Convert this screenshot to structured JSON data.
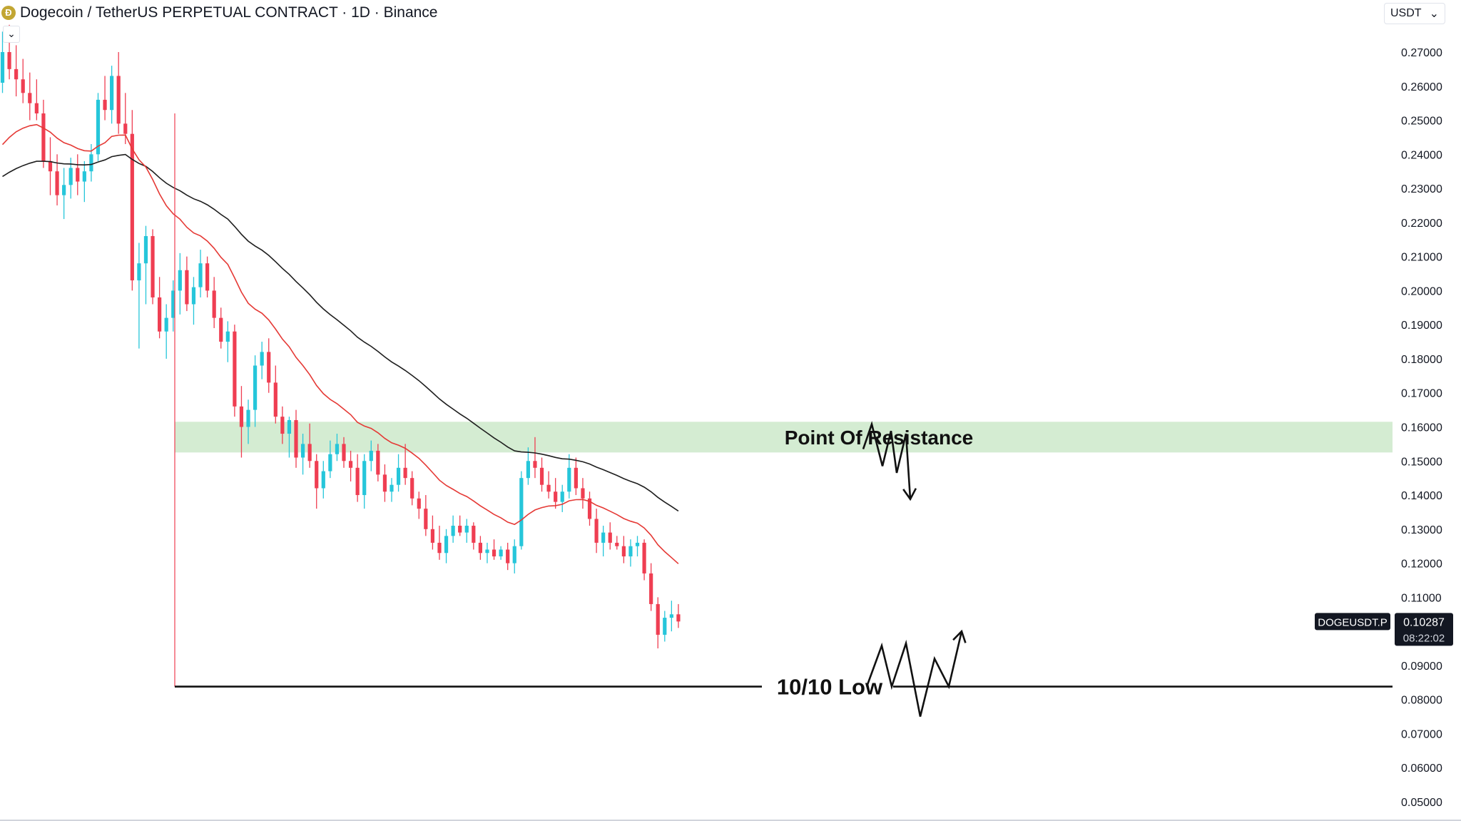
{
  "header": {
    "title": "Dogecoin / TetherUS PERPETUAL CONTRACT · 1D · Binance",
    "icon": "dogecoin-icon",
    "collapse_icon": "chevron-down-icon",
    "currency": "USDT",
    "currency_icon": "chevron-down-icon"
  },
  "chart_data": {
    "type": "candlestick",
    "ylim": [
      0.045,
      0.283
    ],
    "y_ticks": [
      "0.27000",
      "0.26000",
      "0.25000",
      "0.24000",
      "0.23000",
      "0.22000",
      "0.21000",
      "0.20000",
      "0.19000",
      "0.18000",
      "0.17000",
      "0.16000",
      "0.15000",
      "0.14000",
      "0.13000",
      "0.12000",
      "0.11000",
      "0.09000",
      "0.08000",
      "0.07000",
      "0.06000",
      "0.05000"
    ],
    "price_tag": {
      "symbol": "DOGEUSDT.P",
      "price": "0.10287",
      "countdown": "08:22:02",
      "value": 0.10287
    },
    "colors": {
      "up": "#26c6da",
      "down": "#ef3e52",
      "ema_fast": "#e53935",
      "ema_slow": "#1e1e1e",
      "zone": "#d4ecd2"
    },
    "candles": [
      [
        0.261,
        0.276,
        0.258,
        0.27
      ],
      [
        0.27,
        0.278,
        0.262,
        0.265
      ],
      [
        0.265,
        0.272,
        0.257,
        0.262
      ],
      [
        0.262,
        0.268,
        0.255,
        0.258
      ],
      [
        0.258,
        0.264,
        0.25,
        0.255
      ],
      [
        0.255,
        0.262,
        0.25,
        0.252
      ],
      [
        0.252,
        0.256,
        0.236,
        0.238
      ],
      [
        0.238,
        0.245,
        0.228,
        0.235
      ],
      [
        0.235,
        0.24,
        0.225,
        0.228
      ],
      [
        0.228,
        0.236,
        0.221,
        0.231
      ],
      [
        0.231,
        0.239,
        0.227,
        0.236
      ],
      [
        0.236,
        0.24,
        0.228,
        0.232
      ],
      [
        0.232,
        0.238,
        0.226,
        0.235
      ],
      [
        0.235,
        0.243,
        0.232,
        0.24
      ],
      [
        0.24,
        0.258,
        0.238,
        0.256
      ],
      [
        0.256,
        0.263,
        0.25,
        0.253
      ],
      [
        0.253,
        0.266,
        0.249,
        0.263
      ],
      [
        0.263,
        0.27,
        0.246,
        0.249
      ],
      [
        0.249,
        0.258,
        0.243,
        0.246
      ],
      [
        0.246,
        0.253,
        0.2,
        0.203
      ],
      [
        0.203,
        0.214,
        0.183,
        0.208
      ],
      [
        0.208,
        0.219,
        0.196,
        0.216
      ],
      [
        0.216,
        0.218,
        0.196,
        0.198
      ],
      [
        0.198,
        0.204,
        0.186,
        0.188
      ],
      [
        0.188,
        0.196,
        0.18,
        0.192
      ],
      [
        0.192,
        0.203,
        0.188,
        0.2
      ],
      [
        0.2,
        0.211,
        0.193,
        0.206
      ],
      [
        0.206,
        0.21,
        0.194,
        0.196
      ],
      [
        0.196,
        0.204,
        0.19,
        0.201
      ],
      [
        0.201,
        0.212,
        0.198,
        0.208
      ],
      [
        0.208,
        0.21,
        0.198,
        0.2
      ],
      [
        0.2,
        0.204,
        0.189,
        0.192
      ],
      [
        0.192,
        0.195,
        0.183,
        0.185
      ],
      [
        0.185,
        0.191,
        0.179,
        0.188
      ],
      [
        0.188,
        0.19,
        0.163,
        0.166
      ],
      [
        0.166,
        0.172,
        0.151,
        0.16
      ],
      [
        0.16,
        0.168,
        0.155,
        0.165
      ],
      [
        0.165,
        0.181,
        0.16,
        0.178
      ],
      [
        0.178,
        0.185,
        0.174,
        0.182
      ],
      [
        0.182,
        0.186,
        0.17,
        0.173
      ],
      [
        0.173,
        0.178,
        0.161,
        0.163
      ],
      [
        0.163,
        0.166,
        0.155,
        0.158
      ],
      [
        0.158,
        0.163,
        0.151,
        0.162
      ],
      [
        0.162,
        0.165,
        0.148,
        0.151
      ],
      [
        0.151,
        0.158,
        0.146,
        0.155
      ],
      [
        0.155,
        0.161,
        0.148,
        0.15
      ],
      [
        0.15,
        0.152,
        0.136,
        0.142
      ],
      [
        0.142,
        0.15,
        0.139,
        0.147
      ],
      [
        0.147,
        0.156,
        0.145,
        0.152
      ],
      [
        0.152,
        0.158,
        0.15,
        0.155
      ],
      [
        0.155,
        0.157,
        0.148,
        0.15
      ],
      [
        0.15,
        0.153,
        0.144,
        0.148
      ],
      [
        0.148,
        0.152,
        0.138,
        0.14
      ],
      [
        0.14,
        0.152,
        0.136,
        0.15
      ],
      [
        0.15,
        0.156,
        0.147,
        0.153
      ],
      [
        0.153,
        0.155,
        0.144,
        0.146
      ],
      [
        0.146,
        0.149,
        0.138,
        0.141
      ],
      [
        0.141,
        0.145,
        0.138,
        0.143
      ],
      [
        0.143,
        0.152,
        0.141,
        0.148
      ],
      [
        0.148,
        0.155,
        0.143,
        0.145
      ],
      [
        0.145,
        0.147,
        0.137,
        0.139
      ],
      [
        0.139,
        0.141,
        0.133,
        0.136
      ],
      [
        0.136,
        0.14,
        0.128,
        0.13
      ],
      [
        0.13,
        0.134,
        0.124,
        0.126
      ],
      [
        0.126,
        0.131,
        0.121,
        0.123
      ],
      [
        0.123,
        0.13,
        0.12,
        0.128
      ],
      [
        0.128,
        0.134,
        0.126,
        0.131
      ],
      [
        0.131,
        0.134,
        0.128,
        0.129
      ],
      [
        0.129,
        0.133,
        0.126,
        0.131
      ],
      [
        0.131,
        0.132,
        0.124,
        0.126
      ],
      [
        0.126,
        0.128,
        0.121,
        0.123
      ],
      [
        0.123,
        0.126,
        0.12,
        0.124
      ],
      [
        0.124,
        0.127,
        0.121,
        0.122
      ],
      [
        0.122,
        0.125,
        0.121,
        0.124
      ],
      [
        0.124,
        0.126,
        0.118,
        0.12
      ],
      [
        0.12,
        0.127,
        0.117,
        0.125
      ],
      [
        0.125,
        0.147,
        0.124,
        0.145
      ],
      [
        0.145,
        0.154,
        0.143,
        0.15
      ],
      [
        0.15,
        0.157,
        0.145,
        0.148
      ],
      [
        0.148,
        0.151,
        0.141,
        0.143
      ],
      [
        0.143,
        0.147,
        0.139,
        0.141
      ],
      [
        0.141,
        0.145,
        0.136,
        0.138
      ],
      [
        0.138,
        0.143,
        0.135,
        0.141
      ],
      [
        0.141,
        0.152,
        0.139,
        0.148
      ],
      [
        0.148,
        0.151,
        0.14,
        0.142
      ],
      [
        0.142,
        0.145,
        0.136,
        0.139
      ],
      [
        0.139,
        0.141,
        0.131,
        0.133
      ],
      [
        0.133,
        0.136,
        0.123,
        0.126
      ],
      [
        0.126,
        0.131,
        0.122,
        0.129
      ],
      [
        0.129,
        0.132,
        0.124,
        0.126
      ],
      [
        0.126,
        0.128,
        0.124,
        0.125
      ],
      [
        0.125,
        0.128,
        0.12,
        0.122
      ],
      [
        0.122,
        0.127,
        0.119,
        0.125
      ],
      [
        0.125,
        0.128,
        0.122,
        0.126
      ],
      [
        0.126,
        0.127,
        0.115,
        0.117
      ],
      [
        0.117,
        0.12,
        0.106,
        0.108
      ],
      [
        0.108,
        0.11,
        0.095,
        0.099
      ],
      [
        0.099,
        0.106,
        0.097,
        0.104
      ],
      [
        0.104,
        0.109,
        0.1,
        0.105
      ],
      [
        0.105,
        0.108,
        0.101,
        0.1029
      ]
    ],
    "annotations": {
      "resistance_label": "Point Of Resistance",
      "resistance_zone": [
        0.1525,
        0.1615
      ],
      "low_label": "10/10 Low",
      "low_level": 0.0838,
      "scenario_down": [
        [
          1210,
          0.1535
        ],
        [
          1222,
          0.1608
        ],
        [
          1237,
          0.1485
        ],
        [
          1249,
          0.1588
        ],
        [
          1257,
          0.1465
        ],
        [
          1270,
          0.158
        ],
        [
          1276,
          0.1388
        ]
      ],
      "scenario_up": [
        [
          1215,
          0.0838
        ],
        [
          1236,
          0.0958
        ],
        [
          1250,
          0.0838
        ],
        [
          1270,
          0.0965
        ],
        [
          1290,
          0.075
        ],
        [
          1310,
          0.092
        ],
        [
          1330,
          0.0838
        ],
        [
          1348,
          0.1
        ]
      ]
    }
  }
}
